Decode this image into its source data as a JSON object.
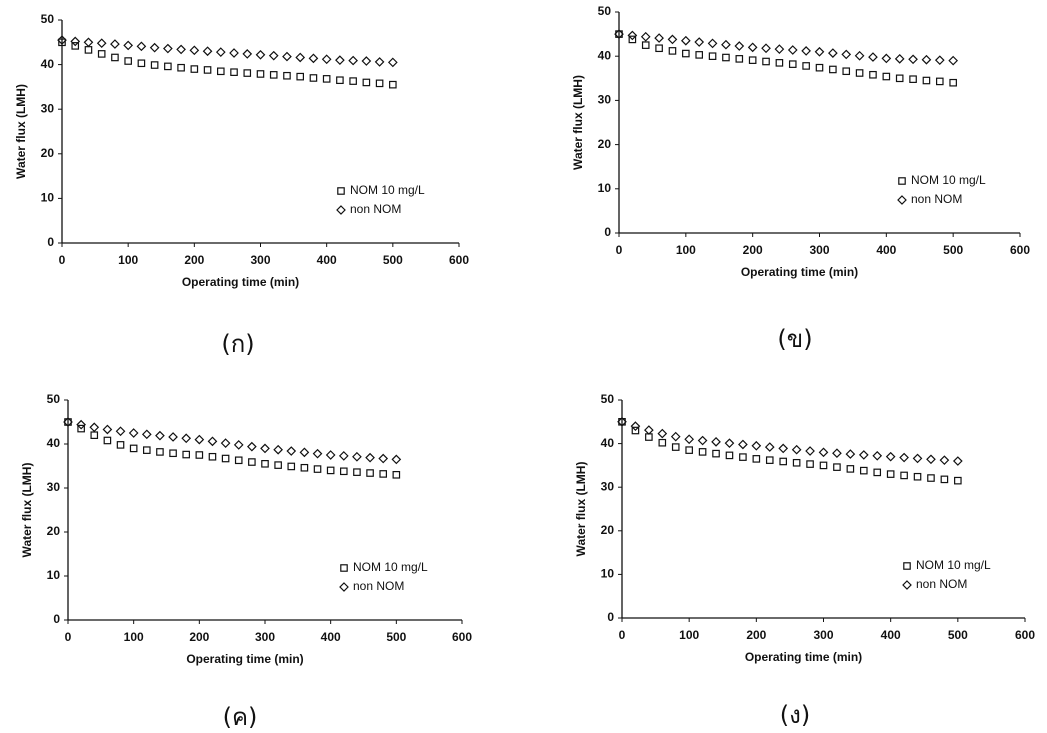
{
  "chart_data": [
    {
      "type": "scatter",
      "panel_label": "(ก)",
      "x_label": "Operating time (min)",
      "y_label": "Water flux (LMH)",
      "xlim": [
        0,
        600
      ],
      "ylim": [
        0,
        50
      ],
      "xticks": [
        0,
        100,
        200,
        300,
        400,
        500,
        600
      ],
      "yticks": [
        0,
        10,
        20,
        30,
        40,
        50
      ],
      "x": [
        0,
        20,
        40,
        60,
        80,
        100,
        120,
        140,
        160,
        180,
        200,
        220,
        240,
        260,
        280,
        300,
        320,
        340,
        360,
        380,
        400,
        420,
        440,
        460,
        480,
        500
      ],
      "series": [
        {
          "name": "NOM 10 mg/L",
          "color": "#111111",
          "marker": "square",
          "values": [
            45.0,
            44.2,
            43.3,
            42.4,
            41.6,
            40.8,
            40.3,
            39.9,
            39.6,
            39.3,
            39.0,
            38.8,
            38.5,
            38.3,
            38.1,
            37.9,
            37.7,
            37.5,
            37.3,
            37.0,
            36.8,
            36.5,
            36.3,
            36.0,
            35.8,
            35.5
          ]
        },
        {
          "name": "non NOM",
          "color": "#111111",
          "marker": "diamond",
          "values": [
            45.5,
            45.2,
            45.0,
            44.8,
            44.6,
            44.3,
            44.1,
            43.8,
            43.6,
            43.4,
            43.2,
            43.0,
            42.8,
            42.6,
            42.4,
            42.2,
            42.0,
            41.8,
            41.6,
            41.4,
            41.2,
            41.0,
            40.9,
            40.8,
            40.6,
            40.5
          ]
        }
      ]
    },
    {
      "type": "scatter",
      "panel_label": "(ข)",
      "x_label": "Operating time (min)",
      "y_label": "Water flux (LMH)",
      "xlim": [
        0,
        600
      ],
      "ylim": [
        0,
        50
      ],
      "xticks": [
        0,
        100,
        200,
        300,
        400,
        500,
        600
      ],
      "yticks": [
        0,
        10,
        20,
        30,
        40,
        50
      ],
      "x": [
        0,
        20,
        40,
        60,
        80,
        100,
        120,
        140,
        160,
        180,
        200,
        220,
        240,
        260,
        280,
        300,
        320,
        340,
        360,
        380,
        400,
        420,
        440,
        460,
        480,
        500
      ],
      "series": [
        {
          "name": "NOM 10 mg/L",
          "color": "#111111",
          "marker": "square",
          "values": [
            45.0,
            43.8,
            42.5,
            41.8,
            41.2,
            40.6,
            40.3,
            40.0,
            39.7,
            39.4,
            39.1,
            38.8,
            38.5,
            38.2,
            37.8,
            37.4,
            37.0,
            36.6,
            36.2,
            35.8,
            35.4,
            35.0,
            34.8,
            34.5,
            34.3,
            34.0
          ]
        },
        {
          "name": "non NOM",
          "color": "#111111",
          "marker": "diamond",
          "values": [
            45.0,
            44.7,
            44.4,
            44.1,
            43.8,
            43.5,
            43.2,
            42.9,
            42.6,
            42.3,
            42.0,
            41.8,
            41.6,
            41.4,
            41.2,
            41.0,
            40.7,
            40.4,
            40.1,
            39.8,
            39.5,
            39.4,
            39.3,
            39.2,
            39.1,
            39.0
          ]
        }
      ]
    },
    {
      "type": "scatter",
      "panel_label": "(ค)",
      "x_label": "Operating time (min)",
      "y_label": "Water flux (LMH)",
      "xlim": [
        0,
        600
      ],
      "ylim": [
        0,
        50
      ],
      "xticks": [
        0,
        100,
        200,
        300,
        400,
        500,
        600
      ],
      "yticks": [
        0,
        10,
        20,
        30,
        40,
        50
      ],
      "x": [
        0,
        20,
        40,
        60,
        80,
        100,
        120,
        140,
        160,
        180,
        200,
        220,
        240,
        260,
        280,
        300,
        320,
        340,
        360,
        380,
        400,
        420,
        440,
        460,
        480,
        500
      ],
      "series": [
        {
          "name": "NOM 10 mg/L",
          "color": "#111111",
          "marker": "square",
          "values": [
            45.0,
            43.5,
            42.0,
            40.8,
            39.8,
            39.0,
            38.6,
            38.2,
            37.9,
            37.6,
            37.5,
            37.1,
            36.7,
            36.3,
            35.9,
            35.5,
            35.2,
            34.9,
            34.6,
            34.3,
            34.0,
            33.8,
            33.6,
            33.4,
            33.2,
            33.0
          ]
        },
        {
          "name": "non NOM",
          "color": "#111111",
          "marker": "diamond",
          "values": [
            45.0,
            44.4,
            43.8,
            43.3,
            42.9,
            42.5,
            42.2,
            41.9,
            41.6,
            41.3,
            41.0,
            40.6,
            40.2,
            39.8,
            39.4,
            39.0,
            38.7,
            38.4,
            38.1,
            37.8,
            37.5,
            37.3,
            37.1,
            36.9,
            36.7,
            36.5
          ]
        }
      ]
    },
    {
      "type": "scatter",
      "panel_label": "(ง)",
      "x_label": "Operating time (min)",
      "y_label": "Water flux (LMH)",
      "xlim": [
        0,
        600
      ],
      "ylim": [
        0,
        50
      ],
      "xticks": [
        0,
        100,
        200,
        300,
        400,
        500,
        600
      ],
      "yticks": [
        0,
        10,
        20,
        30,
        40,
        50
      ],
      "x": [
        0,
        20,
        40,
        60,
        80,
        100,
        120,
        140,
        160,
        180,
        200,
        220,
        240,
        260,
        280,
        300,
        320,
        340,
        360,
        380,
        400,
        420,
        440,
        460,
        480,
        500
      ],
      "series": [
        {
          "name": "NOM 10 mg/L",
          "color": "#111111",
          "marker": "square",
          "values": [
            45.0,
            43.0,
            41.5,
            40.2,
            39.2,
            38.5,
            38.1,
            37.7,
            37.3,
            36.9,
            36.5,
            36.2,
            35.9,
            35.6,
            35.3,
            35.0,
            34.6,
            34.2,
            33.8,
            33.4,
            33.0,
            32.7,
            32.4,
            32.1,
            31.8,
            31.5
          ]
        },
        {
          "name": "non NOM",
          "color": "#111111",
          "marker": "diamond",
          "values": [
            45.0,
            44.0,
            43.1,
            42.3,
            41.6,
            41.0,
            40.7,
            40.4,
            40.1,
            39.8,
            39.5,
            39.2,
            38.9,
            38.6,
            38.3,
            38.0,
            37.8,
            37.6,
            37.4,
            37.2,
            37.0,
            36.8,
            36.6,
            36.4,
            36.2,
            36.0
          ]
        }
      ]
    }
  ]
}
